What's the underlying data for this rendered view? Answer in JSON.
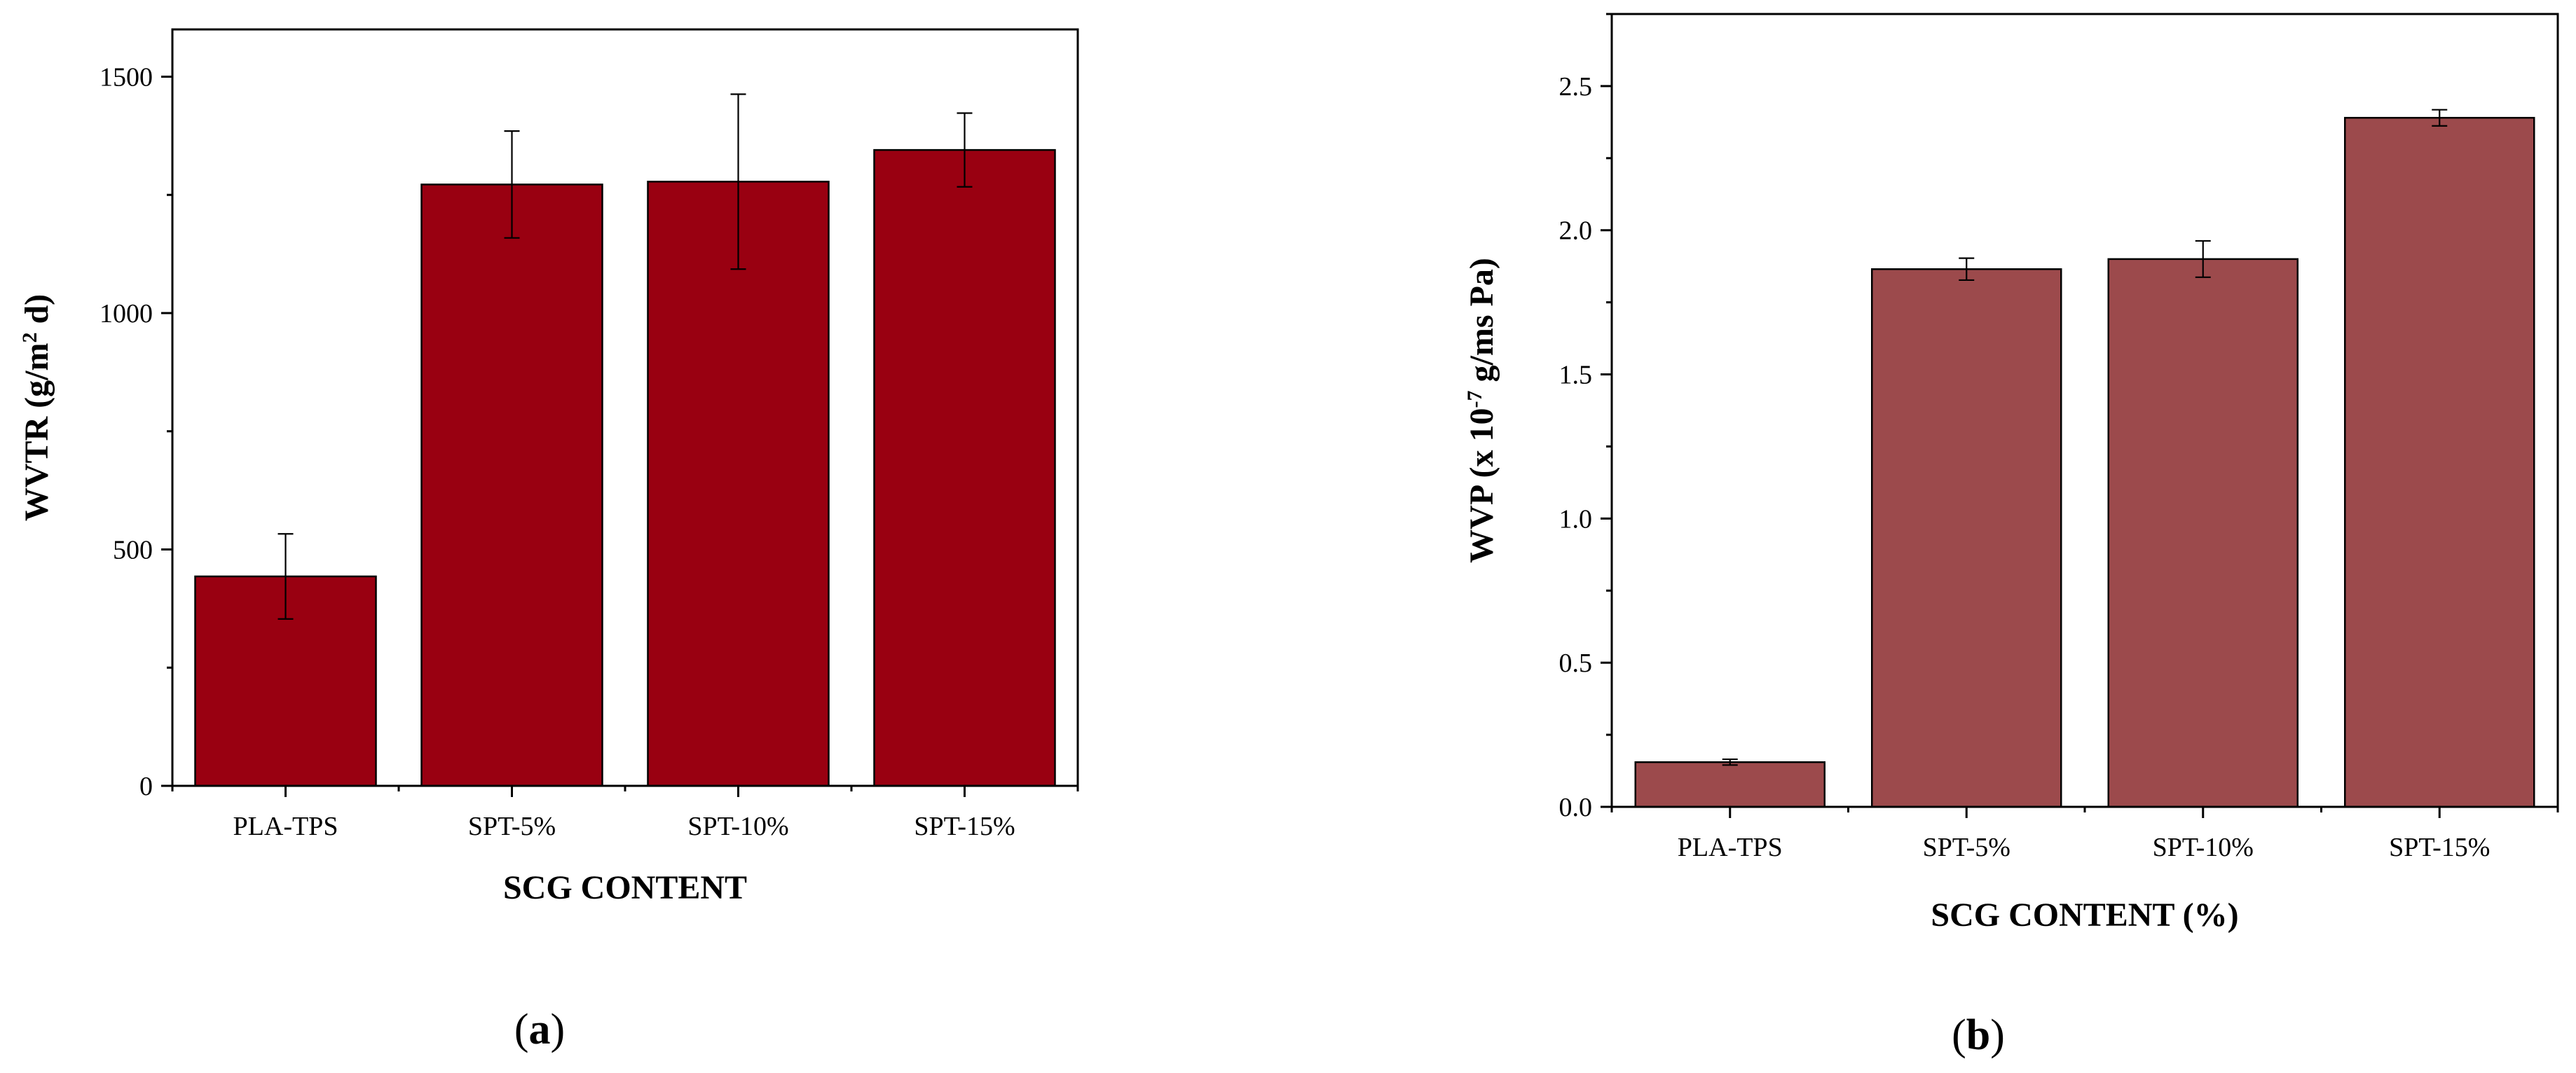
{
  "chart_data": [
    {
      "type": "bar",
      "panel_label": "a",
      "categories": [
        "PLA-TPS",
        "SPT-5%",
        "SPT-10%",
        "SPT-15%"
      ],
      "values": [
        443,
        1272,
        1278,
        1345
      ],
      "errors": [
        90,
        113,
        185,
        78
      ],
      "xlabel": "SCG CONTENT",
      "ylabel_main": "WVTR (g/m",
      "ylabel_sup": "2",
      "ylabel_end": " d)",
      "ylim": [
        0,
        1600
      ],
      "yticks": [
        0,
        500,
        1000,
        1500
      ],
      "ytick_labels": [
        "0",
        "500",
        "1000",
        "1500"
      ],
      "bar_color": "#990011",
      "grid": false
    },
    {
      "type": "bar",
      "panel_label": "b",
      "categories": [
        "PLA-TPS",
        "SPT-5%",
        "SPT-10%",
        "SPT-15%"
      ],
      "values": [
        0.155,
        1.865,
        1.9,
        2.39
      ],
      "errors": [
        0.01,
        0.038,
        0.063,
        0.028
      ],
      "xlabel": "SCG CONTENT (%)",
      "ylabel_main": "WVP (x 10",
      "ylabel_sup": "-7",
      "ylabel_end": " g/ms Pa)",
      "ylim": [
        0,
        2.75
      ],
      "yticks": [
        0,
        0.5,
        1.0,
        1.5,
        2.0,
        2.5
      ],
      "ytick_labels": [
        "0.0",
        "0.5",
        "1.0",
        "1.5",
        "2.0",
        "2.5"
      ],
      "bar_color": "#9c4a4c",
      "grid": false
    }
  ]
}
